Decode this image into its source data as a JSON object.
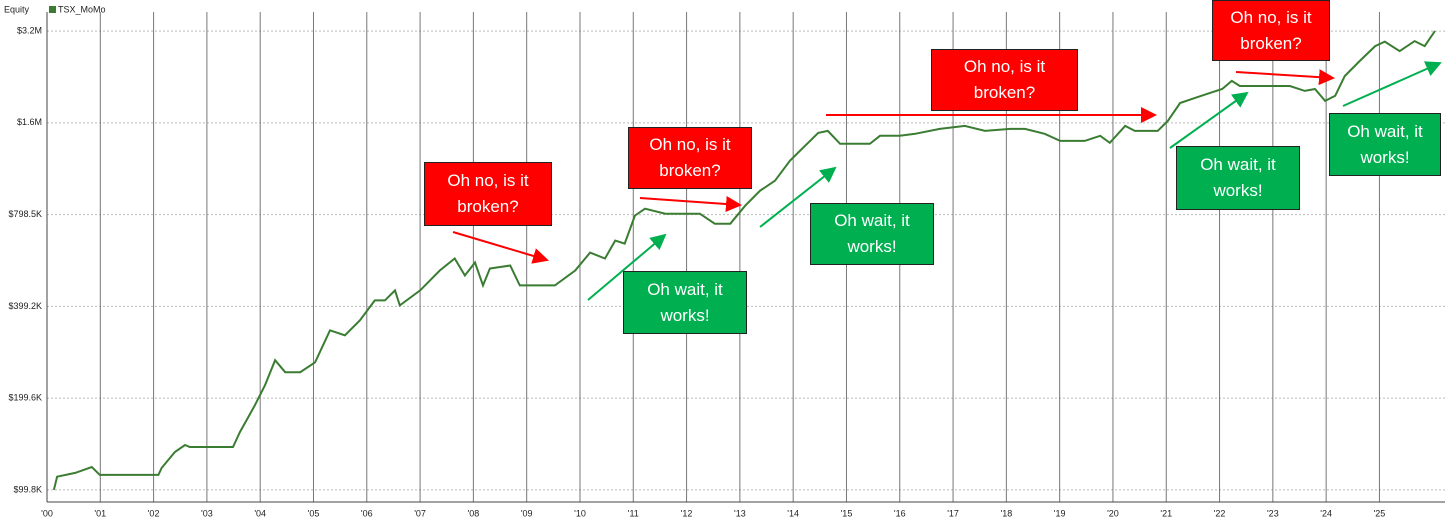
{
  "chart_data": {
    "type": "line",
    "ylabel": "Equity",
    "legend": "top-left",
    "grid": true,
    "ylog": true,
    "x": [
      2000.13,
      2000.19,
      2000.53,
      2000.84,
      2000.99,
      2002.09,
      2002.15,
      2002.4,
      2002.59,
      2002.68,
      2003.49,
      2003.62,
      2003.9,
      2004.09,
      2004.28,
      2004.47,
      2004.75,
      2005.03,
      2005.31,
      2005.59,
      2005.87,
      2006.15,
      2006.34,
      2006.53,
      2006.62,
      2007.0,
      2007.37,
      2007.65,
      2007.84,
      2008.03,
      2008.18,
      2008.31,
      2008.69,
      2008.87,
      2009.53,
      2009.91,
      2010.19,
      2010.47,
      2010.66,
      2010.84,
      2011.03,
      2011.22,
      2011.6,
      2012.25,
      2012.53,
      2012.82,
      2013.1,
      2013.38,
      2013.66,
      2013.94,
      2014.22,
      2014.47,
      2014.65,
      2014.88,
      2015.44,
      2015.63,
      2016.0,
      2016.29,
      2016.75,
      2017.22,
      2017.6,
      2018.07,
      2018.35,
      2018.72,
      2019.01,
      2019.47,
      2019.76,
      2019.94,
      2020.23,
      2020.41,
      2020.84,
      2021.03,
      2021.26,
      2021.54,
      2021.82,
      2022.05,
      2022.23,
      2022.38,
      2023.32,
      2023.6,
      2023.79,
      2023.98,
      2024.17,
      2024.35,
      2024.63,
      2024.92,
      2025.1,
      2025.38,
      2025.66,
      2025.85,
      2026.04
    ],
    "series": [
      {
        "name": "TSX_MoMo",
        "color": "#3a7d32",
        "values": [
          99800,
          110300,
          113500,
          118700,
          111800,
          111800,
          117800,
          132900,
          140100,
          138000,
          138000,
          154500,
          189300,
          220200,
          265800,
          242800,
          242800,
          261800,
          333200,
          320900,
          359300,
          417700,
          417700,
          450400,
          402300,
          450400,
          523500,
          573200,
          504200,
          556200,
          467700,
          531500,
          543700,
          467700,
          467700,
          523500,
          599600,
          573200,
          656400,
          641700,
          792400,
          835300,
          804400,
          804400,
          745900,
          745900,
          854300,
          956600,
          1032000,
          1200000,
          1342000,
          1481000,
          1503000,
          1363000,
          1363000,
          1448000,
          1448000,
          1470000,
          1526000,
          1561000,
          1503000,
          1526000,
          1526000,
          1470000,
          1394000,
          1394000,
          1448000,
          1374000,
          1561000,
          1503000,
          1503000,
          1622000,
          1856000,
          1928000,
          2002000,
          2063000,
          2192000,
          2110000,
          2110000,
          2033000,
          2063000,
          1885000,
          1960000,
          2276000,
          2548000,
          2852000,
          2950000,
          2747000,
          2961000,
          2852000,
          3194000
        ]
      }
    ],
    "xlim": [
      2000,
      2026.23
    ],
    "xticks": [
      {
        "value": 2000,
        "label": "'00"
      },
      {
        "value": 2001,
        "label": "'01"
      },
      {
        "value": 2002,
        "label": "'02"
      },
      {
        "value": 2003,
        "label": "'03"
      },
      {
        "value": 2004,
        "label": "'04"
      },
      {
        "value": 2005,
        "label": "'05"
      },
      {
        "value": 2006,
        "label": "'06"
      },
      {
        "value": 2007,
        "label": "'07"
      },
      {
        "value": 2008,
        "label": "'08"
      },
      {
        "value": 2009,
        "label": "'09"
      },
      {
        "value": 2010,
        "label": "'10"
      },
      {
        "value": 2011,
        "label": "'11"
      },
      {
        "value": 2012,
        "label": "'12"
      },
      {
        "value": 2013,
        "label": "'13"
      },
      {
        "value": 2014,
        "label": "'14"
      },
      {
        "value": 2015,
        "label": "'15"
      },
      {
        "value": 2016,
        "label": "'16"
      },
      {
        "value": 2017,
        "label": "'17"
      },
      {
        "value": 2018,
        "label": "'18"
      },
      {
        "value": 2019,
        "label": "'19"
      },
      {
        "value": 2020,
        "label": "'20"
      },
      {
        "value": 2021,
        "label": "'21"
      },
      {
        "value": 2022,
        "label": "'22"
      },
      {
        "value": 2023,
        "label": "'23"
      },
      {
        "value": 2024,
        "label": "'24"
      },
      {
        "value": 2025,
        "label": "'25"
      }
    ],
    "ylim": [
      91100,
      3690000
    ],
    "yticks": [
      {
        "value": 99800,
        "label": "$99.8K"
      },
      {
        "value": 199600,
        "label": "$199.6K"
      },
      {
        "value": 399200,
        "label": "$399.2K"
      },
      {
        "value": 798500,
        "label": "$798.5K"
      },
      {
        "value": 1597000,
        "label": "$1.6M"
      },
      {
        "value": 3194000,
        "label": "$3.2M"
      }
    ],
    "annotations": [
      {
        "text": "Oh no, is it broken?",
        "color": "#ff0000"
      },
      {
        "text": "Oh wait, it works!",
        "color": "#00b050"
      },
      {
        "text": "Oh no, is it broken?",
        "color": "#ff0000"
      },
      {
        "text": "Oh wait, it works!",
        "color": "#00b050"
      },
      {
        "text": "Oh no, is it broken?",
        "color": "#ff0000"
      },
      {
        "text": "Oh wait, it works!",
        "color": "#00b050"
      },
      {
        "text": "Oh no, is it broken?",
        "color": "#ff0000"
      },
      {
        "text": "Oh wait, it works!",
        "color": "#00b050"
      }
    ]
  }
}
